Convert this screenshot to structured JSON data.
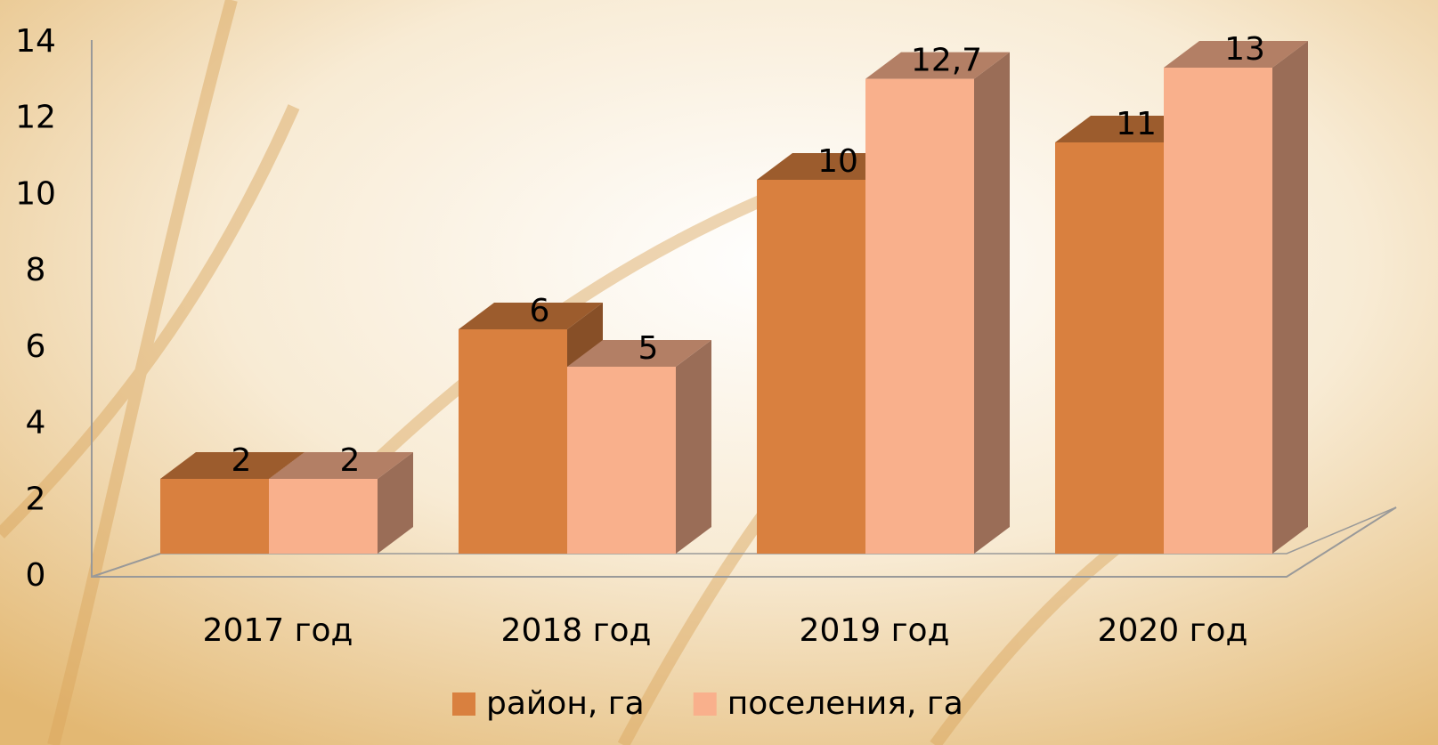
{
  "chart_data": {
    "type": "bar3d",
    "categories": [
      "2017 год",
      "2018 год",
      "2019 год",
      "2020 год"
    ],
    "series": [
      {
        "name": "район, га",
        "color": "#d9803f",
        "values": [
          2,
          6,
          10,
          11
        ]
      },
      {
        "name": "поселения, га",
        "color": "#f9b08c",
        "values": [
          2,
          5,
          12.7,
          13
        ],
        "value_labels": [
          "2",
          "5",
          "12,7",
          "13"
        ]
      }
    ],
    "ylim": [
      0,
      14
    ],
    "yticks": [
      0,
      2,
      4,
      6,
      8,
      10,
      12,
      14
    ],
    "legend": "bottom"
  }
}
